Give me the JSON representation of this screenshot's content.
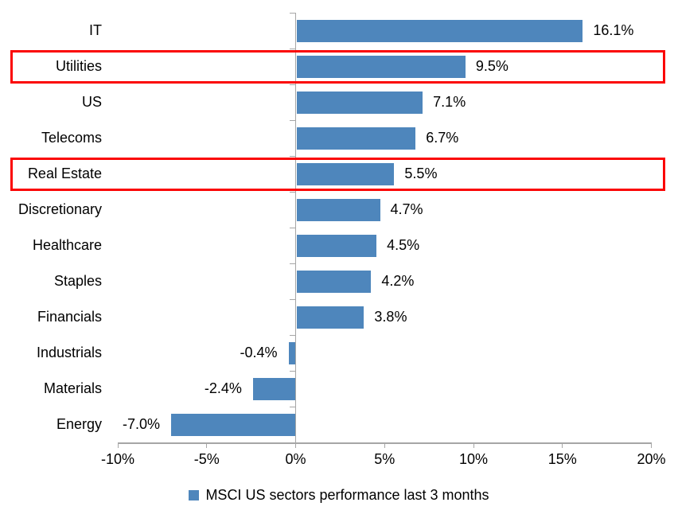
{
  "chart_data": {
    "type": "bar",
    "orientation": "horizontal",
    "title": "",
    "categories": [
      "IT",
      "Utilities",
      "US",
      "Telecoms",
      "Real Estate",
      "Discretionary",
      "Healthcare",
      "Staples",
      "Financials",
      "Industrials",
      "Materials",
      "Energy"
    ],
    "values": [
      16.1,
      9.5,
      7.1,
      6.7,
      5.5,
      4.7,
      4.5,
      4.2,
      3.8,
      -0.4,
      -2.4,
      -7.0
    ],
    "value_labels": [
      "16.1%",
      "9.5%",
      "7.1%",
      "6.7%",
      "5.5%",
      "4.7%",
      "4.5%",
      "4.2%",
      "3.8%",
      "-0.4%",
      "-2.4%",
      "-7.0%"
    ],
    "x_tick_values": [
      -10,
      -5,
      0,
      5,
      10,
      15,
      20
    ],
    "x_tick_labels": [
      "-10%",
      "-5%",
      "0%",
      "5%",
      "10%",
      "15%",
      "20%"
    ],
    "xlim": [
      -10,
      20
    ],
    "grid": false,
    "legend_position": "bottom",
    "legend": "MSCI US sectors performance last 3 months",
    "highlighted_categories": [
      "Utilities",
      "Real Estate"
    ],
    "colors": {
      "bar": "#4E86BC",
      "highlight_box": "#FB0505",
      "axis": "#A6A6A6",
      "text": "#000000"
    }
  }
}
